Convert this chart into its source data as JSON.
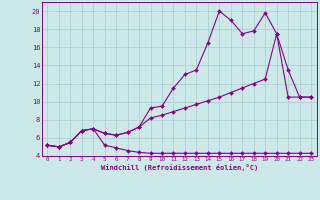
{
  "xlabel": "Windchill (Refroidissement éolien,°C)",
  "bg_color": "#cce9e9",
  "grid_color": "#aacccc",
  "line_color": "#880088",
  "xlim_min": -0.5,
  "xlim_max": 23.5,
  "ylim_min": 4,
  "ylim_max": 21,
  "xticks": [
    0,
    1,
    2,
    3,
    4,
    5,
    6,
    7,
    8,
    9,
    10,
    11,
    12,
    13,
    14,
    15,
    16,
    17,
    18,
    19,
    20,
    21,
    22,
    23
  ],
  "yticks": [
    4,
    6,
    8,
    10,
    12,
    14,
    16,
    18,
    20
  ],
  "line1_x": [
    0,
    1,
    2,
    3,
    4,
    5,
    6,
    7,
    8,
    9,
    10,
    11,
    12,
    13,
    14,
    15,
    16,
    17,
    18,
    19,
    20,
    21,
    22,
    23
  ],
  "line1_y": [
    5.2,
    5.0,
    5.5,
    6.8,
    7.0,
    5.2,
    4.9,
    4.6,
    4.4,
    4.3,
    4.3,
    4.3,
    4.3,
    4.3,
    4.3,
    4.3,
    4.3,
    4.3,
    4.3,
    4.3,
    4.3,
    4.3,
    4.3,
    4.3
  ],
  "line2_x": [
    0,
    1,
    2,
    3,
    4,
    5,
    6,
    7,
    8,
    9,
    10,
    11,
    12,
    13,
    14,
    15,
    16,
    17,
    18,
    19,
    20,
    21,
    22,
    23
  ],
  "line2_y": [
    5.2,
    5.0,
    5.5,
    6.8,
    7.0,
    6.5,
    6.3,
    6.6,
    7.2,
    9.3,
    9.5,
    11.5,
    13.0,
    13.5,
    16.5,
    20.0,
    19.0,
    17.5,
    17.8,
    19.8,
    17.5,
    13.5,
    10.5,
    10.5
  ],
  "line3_x": [
    0,
    1,
    2,
    3,
    4,
    5,
    6,
    7,
    8,
    9,
    10,
    11,
    12,
    13,
    14,
    15,
    16,
    17,
    18,
    19,
    20,
    21,
    22,
    23
  ],
  "line3_y": [
    5.2,
    5.0,
    5.5,
    6.8,
    7.0,
    6.5,
    6.3,
    6.6,
    7.2,
    8.2,
    8.5,
    8.9,
    9.3,
    9.7,
    10.1,
    10.5,
    11.0,
    11.5,
    12.0,
    12.5,
    17.5,
    10.5,
    10.5,
    10.5
  ]
}
